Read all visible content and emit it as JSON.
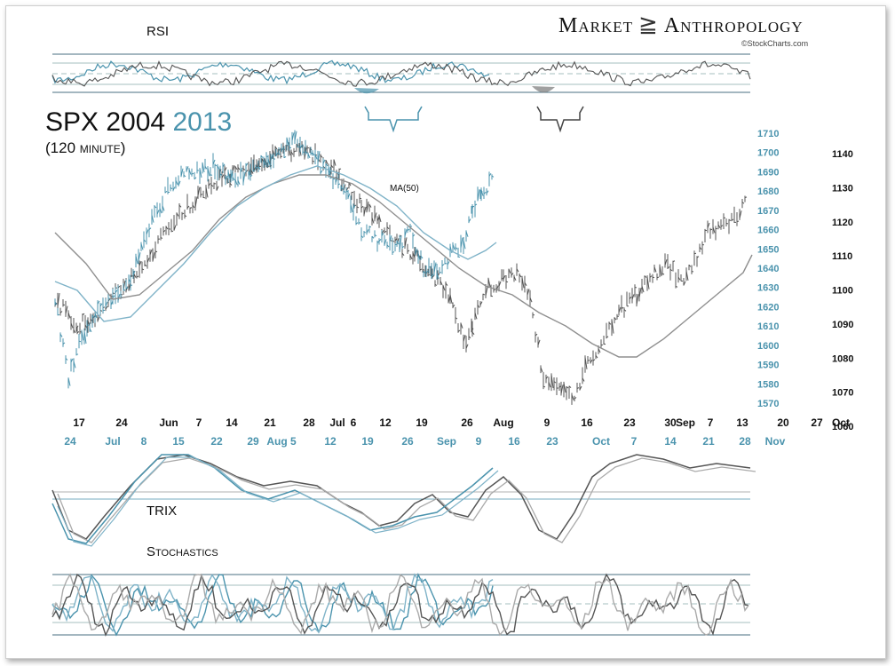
{
  "header": {
    "brand_left": "Market",
    "brand_right": "Anthropology",
    "brand_icon": "dna-helix-icon",
    "credit": "©StockCharts.com",
    "title_main": "SPX 2004",
    "title_year": "2013",
    "subtitle": "(120 minute)"
  },
  "colors": {
    "series_2013": "#4a93ad",
    "series_2004": "#555555",
    "ma_2004": "#8f8f8f",
    "ma_2013": "#7fb3c8",
    "frame": "#cfcfcf"
  },
  "chart_data": [
    {
      "type": "line",
      "panel": "RSI",
      "label": "RSI",
      "series": [
        {
          "name": "2004"
        },
        {
          "name": "2013"
        }
      ],
      "shaded_regions": [
        "oversold 2013 (blue) with bracket",
        "oversold 2004 (grey) with bracket"
      ]
    },
    {
      "type": "line",
      "panel": "price",
      "series": [
        {
          "name": "2004",
          "axis": "right-outer",
          "kind": "bars",
          "path": [
            [
              0.04,
              0.38
            ],
            [
              0.07,
              0.5
            ],
            [
              0.1,
              0.6
            ],
            [
              0.13,
              0.55
            ],
            [
              0.16,
              0.45
            ],
            [
              0.2,
              0.38
            ],
            [
              0.25,
              0.32
            ],
            [
              0.3,
              0.25
            ],
            [
              0.35,
              0.22
            ],
            [
              0.39,
              0.14
            ],
            [
              0.42,
              0.18
            ],
            [
              0.44,
              0.09
            ],
            [
              0.47,
              0.07
            ],
            [
              0.5,
              0.13
            ],
            [
              0.52,
              0.1
            ],
            [
              0.55,
              0.06
            ],
            [
              0.58,
              0.09
            ],
            [
              0.62,
              0.14
            ],
            [
              0.65,
              0.1
            ],
            [
              0.68,
              0.12
            ],
            [
              0.72,
              0.18
            ],
            [
              0.75,
              0.22
            ],
            [
              0.79,
              0.25
            ],
            [
              0.82,
              0.28
            ],
            [
              0.86,
              0.32
            ],
            [
              0.9,
              0.38
            ],
            [
              0.94,
              0.35
            ],
            [
              0.98,
              0.44
            ]
          ]
        },
        {
          "name": "2013",
          "axis": "right-inner",
          "kind": "bars"
        },
        {
          "name": "MA(50)",
          "label": "MA(50)"
        }
      ],
      "y_axis_inner": {
        "ticks": [
          1710,
          1700,
          1690,
          1680,
          1670,
          1660,
          1650,
          1640,
          1630,
          1620,
          1610,
          1600,
          1590,
          1580,
          1570
        ]
      },
      "y_axis_outer": {
        "ticks": [
          1140,
          1130,
          1120,
          1110,
          1100,
          1090,
          1080,
          1070,
          1060
        ]
      },
      "x_axis_2004": [
        "17",
        "24",
        "Jun",
        "7",
        "14",
        "21",
        "28",
        "Jul",
        "6",
        "12",
        "19",
        "26",
        "Aug",
        "9",
        "16",
        "23",
        "30",
        "Sep",
        "7",
        "13",
        "20",
        "27",
        "Oct"
      ],
      "x_axis_2013": [
        "24",
        "Jul",
        "8",
        "15",
        "22",
        "29",
        "Aug 5",
        "12",
        "19",
        "26",
        "Sep",
        "9",
        "16",
        "23",
        "Oct",
        "7",
        "14",
        "21",
        "28",
        "Nov"
      ]
    },
    {
      "type": "line",
      "panel": "TRIX",
      "label": "TRIX",
      "series": [
        {
          "name": "2004"
        },
        {
          "name": "2013"
        }
      ]
    },
    {
      "type": "line",
      "panel": "Stochastics",
      "label": "Stochastics",
      "series": [
        {
          "name": "2004"
        },
        {
          "name": "2013"
        }
      ]
    }
  ]
}
